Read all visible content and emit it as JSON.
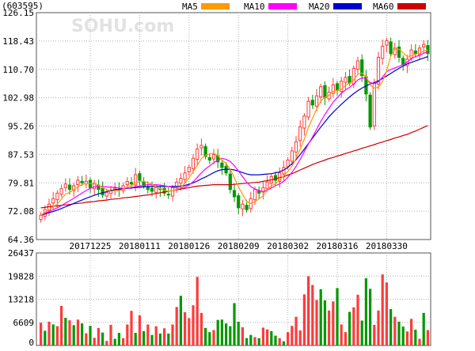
{
  "stock_code": "(603595)",
  "watermark": "SOHU.com",
  "colors": {
    "up": "#ff3b3b",
    "down": "#009900",
    "MA5": "#ff9900",
    "MA10": "#ff00ff",
    "MA20": "#0000cc",
    "MA60": "#cc0000",
    "grid": "#b0b0b0",
    "frame": "#555555"
  },
  "legend": [
    {
      "name": "MA5",
      "color": "#ff9900"
    },
    {
      "name": "MA10",
      "color": "#ff00ff"
    },
    {
      "name": "MA20",
      "color": "#0000cc"
    },
    {
      "name": "MA60",
      "color": "#cc0000"
    }
  ],
  "chart_data": [
    {
      "type": "candlestick",
      "ylim": [
        64.36,
        126.15
      ],
      "y_ticks": [
        "126.15",
        "118.43",
        "110.70",
        "102.98",
        "95.26",
        "87.53",
        "79.81",
        "72.08",
        "64.36"
      ],
      "x_tick_labels": [
        "20171225",
        "20180111",
        "20180126",
        "20180209",
        "20180302",
        "20180316",
        "20180330"
      ],
      "x_tick_index": [
        12,
        24,
        36,
        48,
        60,
        72,
        84
      ],
      "grid": true,
      "close": [
        71.0,
        72.5,
        74.0,
        75.5,
        77.0,
        78.2,
        79.5,
        78.0,
        79.0,
        80.5,
        79.8,
        80.2,
        78.5,
        79.5,
        78.0,
        76.5,
        77.2,
        77.8,
        78.4,
        78.0,
        79.0,
        80.2,
        79.5,
        82.0,
        80.5,
        79.0,
        78.0,
        77.5,
        78.5,
        78.0,
        77.0,
        76.5,
        78.5,
        80.0,
        81.0,
        82.5,
        84.0,
        86.5,
        89.0,
        90.0,
        87.0,
        86.0,
        87.5,
        85.5,
        84.0,
        82.5,
        78.0,
        76.0,
        73.0,
        74.0,
        72.5,
        75.5,
        78.0,
        77.0,
        78.5,
        80.0,
        81.5,
        80.5,
        82.5,
        84.0,
        86.0,
        88.5,
        91.0,
        95.0,
        98.0,
        102.0,
        101.0,
        103.5,
        106.0,
        103.0,
        104.5,
        106.5,
        105.0,
        107.5,
        108.5,
        107.0,
        111.0,
        113.0,
        109.0,
        104.0,
        95.0,
        107.0,
        114.0,
        117.0,
        118.5,
        115.0,
        116.5,
        114.0,
        112.0,
        113.5,
        116.0,
        115.0,
        116.5,
        117.5,
        115.0
      ],
      "ma5": [
        71.0,
        71.8,
        72.5,
        73.3,
        74.0,
        75.4,
        76.8,
        77.2,
        78.0,
        78.6,
        79.4,
        79.5,
        79.6,
        79.7,
        79.2,
        78.5,
        78.0,
        77.5,
        77.7,
        77.6,
        78.1,
        78.7,
        79.0,
        79.8,
        80.2,
        80.2,
        79.8,
        79.4,
        78.7,
        78.2,
        77.8,
        77.5,
        77.7,
        78.0,
        78.6,
        79.7,
        81.2,
        82.8,
        84.6,
        86.4,
        87.3,
        87.7,
        87.9,
        87.2,
        86.0,
        85.1,
        83.5,
        81.2,
        78.7,
        76.7,
        74.7,
        74.2,
        74.6,
        75.4,
        76.3,
        77.8,
        79.0,
        79.5,
        80.6,
        81.7,
        82.9,
        84.3,
        86.5,
        89.0,
        91.7,
        94.9,
        97.4,
        99.9,
        102.1,
        103.1,
        103.6,
        104.7,
        105.0,
        105.3,
        106.4,
        106.9,
        107.8,
        109.4,
        109.7,
        108.8,
        106.4,
        105.6,
        105.8,
        107.4,
        110.3,
        114.3,
        116.2,
        116.2,
        115.2,
        114.2,
        114.4,
        114.9,
        115.0,
        115.7,
        116.0
      ],
      "ma10": [
        71.0,
        71.5,
        72.0,
        72.5,
        73.0,
        73.6,
        74.3,
        74.9,
        75.6,
        76.3,
        77.0,
        77.7,
        78.3,
        78.7,
        78.9,
        78.8,
        78.7,
        78.6,
        78.6,
        78.4,
        78.3,
        78.4,
        78.5,
        78.8,
        78.9,
        79.2,
        79.3,
        79.3,
        79.3,
        79.2,
        79.0,
        78.8,
        78.6,
        78.4,
        78.4,
        78.6,
        79.2,
        80.1,
        81.3,
        82.5,
        83.6,
        84.4,
        85.3,
        86.0,
        86.5,
        86.2,
        85.6,
        84.5,
        83.0,
        81.5,
        80.0,
        78.8,
        78.1,
        77.7,
        77.4,
        77.8,
        78.4,
        79.0,
        79.5,
        80.2,
        81.3,
        82.7,
        84.3,
        86.2,
        88.3,
        90.4,
        92.3,
        94.4,
        96.5,
        98.4,
        100.1,
        101.8,
        103.0,
        104.2,
        105.1,
        105.8,
        106.7,
        107.8,
        108.4,
        108.2,
        107.1,
        106.8,
        107.3,
        108.6,
        110.1,
        110.7,
        111.1,
        111.5,
        112.0,
        112.7,
        113.6,
        114.2,
        114.5,
        115.1,
        115.5
      ],
      "ma20": [
        71.0,
        71.3,
        71.7,
        72.0,
        72.4,
        72.8,
        73.3,
        73.7,
        74.2,
        74.7,
        75.1,
        75.6,
        76.0,
        76.4,
        76.8,
        77.1,
        77.4,
        77.7,
        77.9,
        78.1,
        78.2,
        78.3,
        78.4,
        78.5,
        78.6,
        78.7,
        78.8,
        78.8,
        78.8,
        78.8,
        78.8,
        78.8,
        78.8,
        78.8,
        78.9,
        79.1,
        79.4,
        79.8,
        80.3,
        80.9,
        81.4,
        82.0,
        82.6,
        83.1,
        83.4,
        83.5,
        83.5,
        83.3,
        83.0,
        82.6,
        82.2,
        82.0,
        82.0,
        82.0,
        82.1,
        82.2,
        82.3,
        82.5,
        82.8,
        83.3,
        84.0,
        85.0,
        86.1,
        87.5,
        89.0,
        90.5,
        92.0,
        93.5,
        95.0,
        96.4,
        97.8,
        99.0,
        100.1,
        101.2,
        102.2,
        103.2,
        104.1,
        104.9,
        105.6,
        106.2,
        106.7,
        107.1,
        107.6,
        108.2,
        108.9,
        109.6,
        110.3,
        111.0,
        111.6,
        112.2,
        112.6,
        113.0,
        113.4,
        113.8,
        114.2
      ],
      "ma60": [
        73.0,
        73.1,
        73.3,
        73.4,
        73.5,
        73.7,
        73.8,
        73.9,
        74.1,
        74.2,
        74.3,
        74.5,
        74.6,
        74.7,
        74.9,
        75.0,
        75.1,
        75.3,
        75.4,
        75.5,
        75.7,
        75.8,
        75.9,
        76.1,
        76.2,
        76.4,
        76.5,
        76.7,
        76.9,
        77.1,
        77.3,
        77.5,
        77.7,
        77.9,
        78.1,
        78.3,
        78.5,
        78.7,
        78.9,
        79.0,
        79.1,
        79.2,
        79.3,
        79.3,
        79.3,
        79.3,
        79.3,
        79.4,
        79.5,
        79.6,
        79.7,
        79.8,
        79.9,
        80.0,
        80.2,
        80.4,
        80.6,
        80.9,
        81.2,
        81.5,
        81.9,
        82.3,
        82.8,
        83.3,
        83.8,
        84.3,
        84.8,
        85.2,
        85.6,
        86.0,
        86.4,
        86.7,
        87.1,
        87.4,
        87.8,
        88.1,
        88.5,
        88.8,
        89.2,
        89.5,
        89.9,
        90.2,
        90.6,
        90.9,
        91.3,
        91.6,
        92.0,
        92.3,
        92.7,
        93.0,
        93.5,
        93.9,
        94.4,
        94.9,
        95.4
      ]
    },
    {
      "type": "bar",
      "name": "volume",
      "ylim": [
        0,
        26437
      ],
      "y_ticks": [
        "26437",
        "19828",
        "13218",
        "6609",
        "0"
      ],
      "grid": true,
      "values": [
        6500,
        4200,
        6800,
        6000,
        5500,
        11300,
        7900,
        7200,
        5800,
        7400,
        6300,
        3500,
        5600,
        2200,
        5000,
        3700,
        1300,
        5900,
        1900,
        3600,
        2100,
        6000,
        9900,
        3600,
        8600,
        4100,
        6000,
        3000,
        5500,
        3400,
        4900,
        3400,
        6000,
        11000,
        14200,
        9500,
        7800,
        11500,
        19600,
        9300,
        5000,
        3800,
        4400,
        7300,
        7400,
        6300,
        5500,
        12100,
        6800,
        5200,
        2100,
        3000,
        2400,
        2100,
        5100,
        4600,
        4100,
        2800,
        2100,
        1200,
        3800,
        5600,
        8200,
        4300,
        14600,
        19800,
        17300,
        13000,
        16100,
        12900,
        10000,
        12600,
        16400,
        6000,
        3800,
        9600,
        10900,
        14500,
        7100,
        19200,
        16200,
        5900,
        10000,
        20300,
        18000,
        10400,
        8200,
        6800,
        5400,
        4000,
        7600,
        4500,
        1900,
        9300,
        4400
      ],
      "down_days": [
        1,
        3,
        6,
        8,
        10,
        12,
        15,
        18,
        19,
        23,
        25,
        27,
        29,
        31,
        34,
        40,
        41,
        43,
        44,
        45,
        46,
        47,
        48,
        50,
        51,
        53,
        56,
        57,
        59,
        68,
        69,
        72,
        75,
        78,
        79,
        80,
        85,
        87,
        88,
        91,
        93
      ]
    }
  ]
}
